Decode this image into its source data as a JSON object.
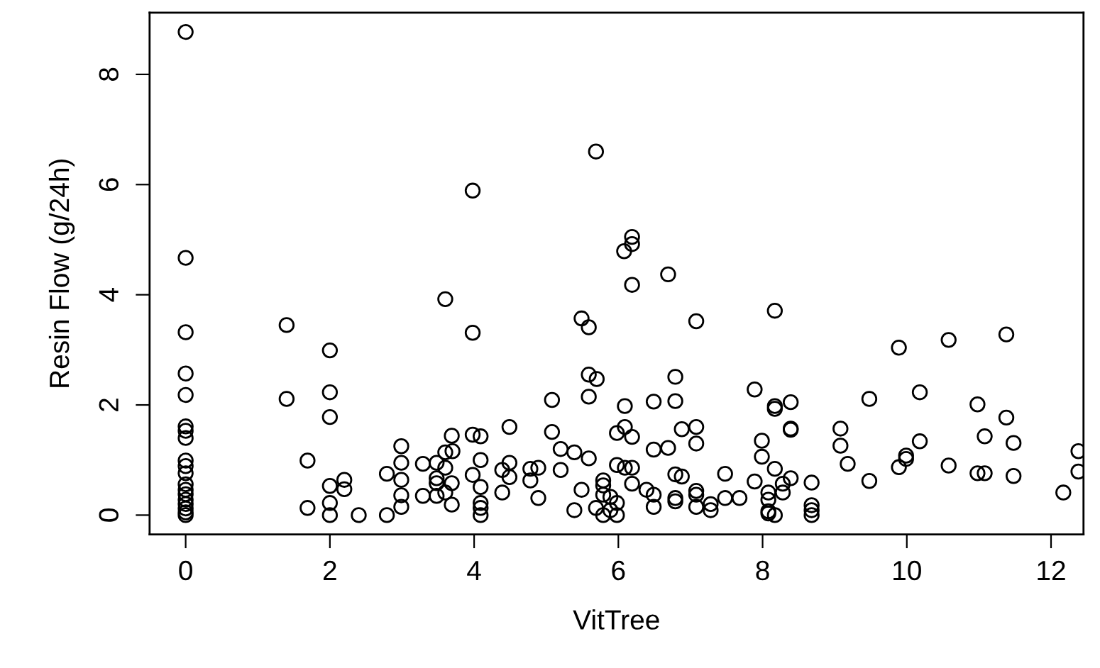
{
  "chart_data": {
    "type": "scatter",
    "xlabel": "VitTree",
    "ylabel": "Resin Flow (g/24h)",
    "xlim": [
      -0.5,
      12.45
    ],
    "ylim": [
      -0.35,
      9.12
    ],
    "xticks": [
      0,
      2,
      4,
      6,
      8,
      10,
      12
    ],
    "yticks": [
      0,
      2,
      4,
      6,
      8
    ],
    "marker": "circle",
    "grid": false,
    "series": [
      {
        "color": "#000000",
        "x": [
          0,
          0,
          0,
          0,
          0,
          0,
          0,
          0,
          0,
          0,
          0,
          0,
          0,
          0,
          0,
          0,
          0,
          0,
          0,
          1.4,
          1.4,
          1.69,
          1.69,
          2.0,
          2.0,
          2.0,
          2.0,
          2.0,
          2.0,
          2.2,
          2.2,
          2.4,
          2.79,
          2.79,
          2.99,
          2.99,
          2.99,
          2.99,
          2.99,
          3.29,
          3.29,
          3.48,
          3.48,
          3.48,
          3.48,
          3.6,
          3.6,
          3.6,
          3.6,
          3.69,
          3.69,
          3.69,
          3.7,
          3.98,
          3.98,
          3.98,
          4.09,
          3.98,
          4.09,
          4.09,
          4.09,
          4.09,
          4.09,
          4.39,
          4.39,
          4.49,
          4.49,
          4.49,
          4.78,
          4.89,
          4.78,
          4.89,
          5.08,
          5.08,
          5.2,
          5.2,
          5.39,
          5.39,
          5.49,
          5.59,
          5.49,
          5.59,
          5.7,
          5.59,
          5.59,
          5.69,
          5.69,
          5.79,
          5.79,
          5.79,
          5.79,
          5.89,
          5.89,
          5.98,
          5.98,
          5.98,
          5.98,
          6.08,
          6.19,
          6.19,
          6.19,
          6.09,
          6.09,
          6.19,
          6.09,
          6.19,
          6.19,
          6.39,
          6.49,
          6.49,
          6.49,
          6.49,
          6.69,
          6.69,
          6.79,
          6.79,
          6.79,
          6.88,
          6.79,
          6.79,
          6.88,
          7.08,
          7.08,
          7.08,
          7.08,
          7.08,
          7.08,
          7.28,
          7.28,
          7.48,
          7.48,
          7.68,
          7.89,
          7.99,
          7.99,
          7.89,
          8.08,
          8.08,
          8.08,
          8.08,
          8.17,
          8.17,
          8.17,
          8.17,
          8.17,
          8.39,
          8.39,
          8.39,
          8.28,
          8.28,
          8.39,
          8.68,
          8.68,
          8.68,
          8.68,
          9.08,
          9.08,
          9.18,
          9.48,
          9.48,
          9.89,
          9.99,
          9.99,
          9.89,
          10.18,
          10.18,
          10.58,
          10.58,
          10.98,
          11.08,
          10.98,
          11.08,
          11.38,
          11.38,
          11.48,
          11.48,
          12.17,
          12.38,
          12.38
        ],
        "values": [
          8.77,
          4.67,
          3.32,
          2.57,
          2.18,
          1.61,
          1.53,
          1.4,
          0.99,
          0.89,
          0.76,
          0.56,
          0.46,
          0.38,
          0.28,
          0.2,
          0.12,
          0.05,
          0.0,
          3.45,
          2.11,
          0.99,
          0.13,
          2.99,
          2.23,
          1.78,
          0.53,
          0.22,
          0.0,
          0.64,
          0.47,
          0.0,
          0.0,
          0.75,
          1.25,
          0.95,
          0.64,
          0.36,
          0.15,
          0.93,
          0.35,
          0.95,
          0.67,
          0.58,
          0.35,
          3.92,
          1.14,
          0.86,
          0.41,
          1.44,
          0.58,
          0.19,
          1.16,
          5.89,
          3.31,
          1.46,
          1.43,
          0.73,
          1.0,
          0.51,
          0.22,
          0.13,
          0.0,
          0.82,
          0.41,
          1.6,
          0.95,
          0.69,
          0.84,
          0.86,
          0.63,
          0.31,
          2.09,
          1.51,
          1.2,
          0.82,
          1.14,
          0.09,
          3.57,
          3.41,
          0.46,
          2.55,
          2.47,
          2.15,
          1.03,
          6.6,
          0.13,
          0.63,
          0.54,
          0.37,
          0.0,
          0.33,
          0.09,
          1.49,
          0.91,
          0.22,
          0.0,
          4.79,
          5.05,
          4.92,
          4.18,
          1.98,
          1.6,
          1.42,
          0.86,
          0.86,
          0.57,
          0.46,
          2.06,
          0.37,
          0.15,
          1.19,
          1.22,
          4.37,
          2.51,
          2.07,
          0.74,
          0.7,
          0.31,
          0.25,
          1.56,
          3.52,
          1.6,
          1.3,
          0.44,
          0.37,
          0.15,
          0.2,
          0.09,
          0.75,
          0.31,
          0.31,
          2.28,
          1.35,
          1.06,
          0.61,
          0.41,
          0.28,
          0.07,
          0.03,
          3.71,
          1.98,
          1.93,
          0.84,
          0.0,
          2.05,
          1.57,
          1.55,
          0.57,
          0.41,
          0.67,
          0.59,
          0.18,
          0.09,
          0.0,
          1.57,
          1.26,
          0.93,
          2.11,
          0.62,
          3.04,
          1.08,
          1.02,
          0.87,
          2.23,
          1.34,
          3.18,
          0.9,
          2.01,
          1.43,
          0.76,
          0.76,
          3.28,
          1.77,
          1.31,
          0.71,
          0.41,
          1.16,
          0.79
        ]
      }
    ]
  }
}
